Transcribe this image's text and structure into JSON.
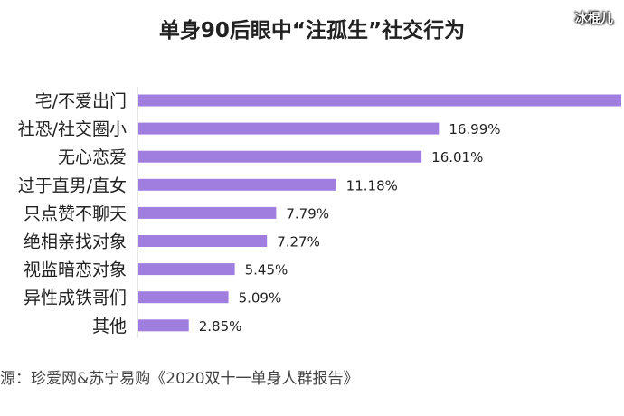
{
  "chart_data": {
    "type": "bar",
    "orientation": "horizontal",
    "title": "单身90后眼中“注孤生”社交行为",
    "categories": [
      "宅/不爱出门",
      "社恐/社交圈小",
      "无心恋爱",
      "过于直男/直女",
      "只点赞不聊天",
      "绝相亲找对象",
      "视监暗恋对象",
      "异性成铁哥们",
      "其他"
    ],
    "values": [
      27.3,
      16.99,
      16.01,
      11.18,
      7.79,
      7.27,
      5.45,
      5.09,
      2.85
    ],
    "labels": [
      "",
      "16.99%",
      "16.01%",
      "11.18%",
      "7.79%",
      "7.27%",
      "5.45%",
      "5.09%",
      "2.85%"
    ],
    "bar_color": "#a07ee0",
    "xlim": [
      0,
      27.5
    ]
  },
  "source": "源：珍爱网&苏宁易购《2020双十一单身人群报告》",
  "watermark": "冰棍儿"
}
